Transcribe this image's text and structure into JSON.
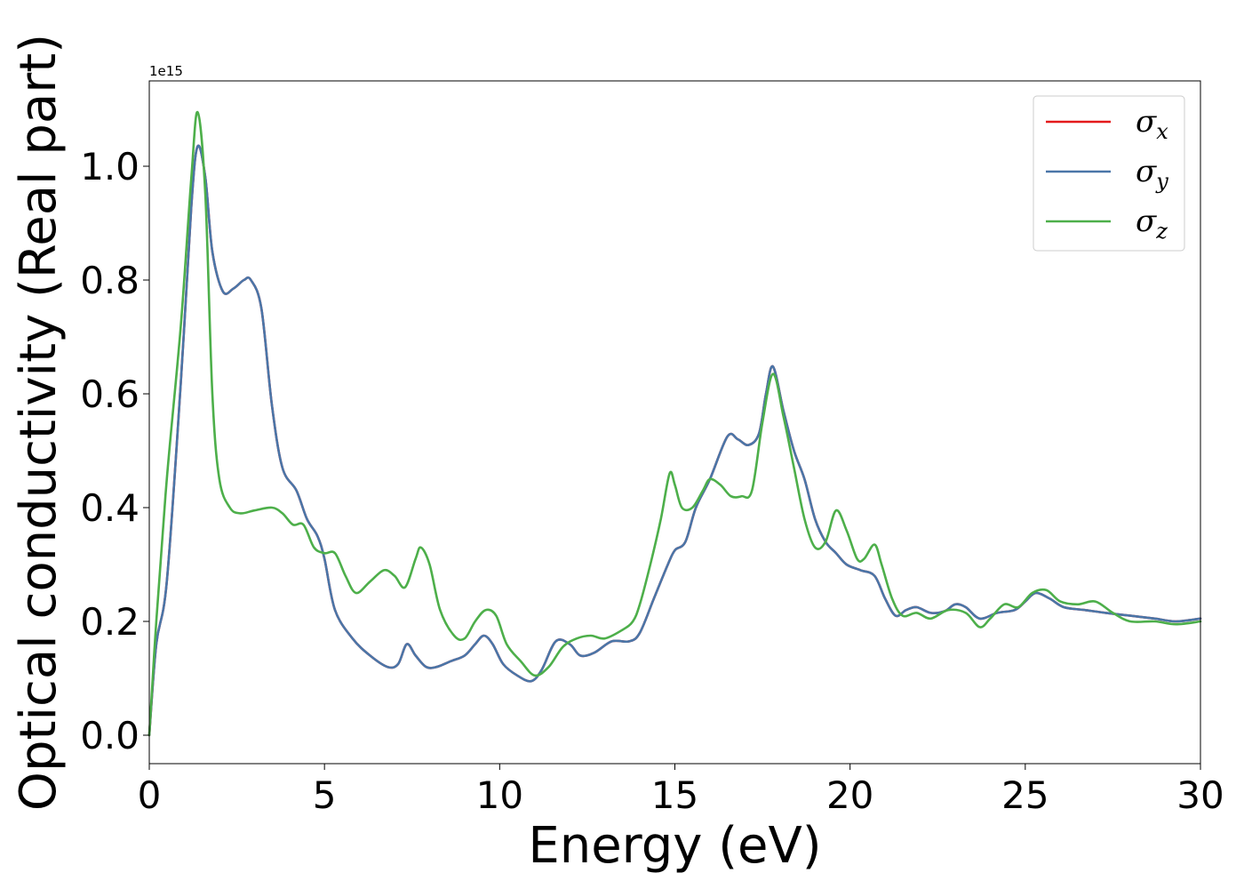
{
  "chart_data": {
    "type": "line",
    "xlabel": "Energy (eV)",
    "ylabel": "Optical conductivity (Real part)",
    "y_offset_text": "1e15",
    "y_scale": 1000000000000000.0,
    "xlim": [
      0,
      30
    ],
    "ylim": [
      -0.05,
      1.15
    ],
    "x_ticks": [
      0,
      5,
      10,
      15,
      20,
      25,
      30
    ],
    "x_tick_labels": [
      "0",
      "5",
      "10",
      "15",
      "20",
      "25",
      "30"
    ],
    "y_ticks": [
      0.0,
      0.2,
      0.4,
      0.6,
      0.8,
      1.0
    ],
    "y_tick_labels": [
      "0.0",
      "0.2",
      "0.4",
      "0.6",
      "0.8",
      "1.0"
    ],
    "grid": false,
    "legend_position": "top-right",
    "series": [
      {
        "name": "σx",
        "symbol": "σ",
        "subscript": "x",
        "color": "#e41a1c",
        "x": [
          0,
          0.2,
          0.5,
          0.9,
          1.2,
          1.38,
          1.6,
          1.8,
          2.1,
          2.4,
          2.7,
          2.9,
          3.2,
          3.5,
          3.8,
          4.2,
          4.5,
          4.8,
          5.0,
          5.3,
          5.8,
          6.3,
          6.8,
          7.1,
          7.35,
          7.6,
          7.9,
          8.2,
          8.6,
          9.0,
          9.3,
          9.55,
          9.8,
          10.1,
          10.5,
          10.9,
          11.2,
          11.6,
          12.0,
          12.3,
          12.7,
          13.2,
          13.7,
          14.0,
          14.4,
          14.8,
          15.0,
          15.3,
          15.6,
          16.0,
          16.5,
          16.8,
          17.1,
          17.4,
          17.6,
          17.8,
          18.1,
          18.4,
          18.7,
          19.0,
          19.3,
          19.6,
          19.9,
          20.3,
          20.7,
          21.0,
          21.3,
          21.6,
          21.9,
          22.3,
          22.7,
          23.0,
          23.3,
          23.7,
          24.2,
          24.7,
          25.0,
          25.3,
          25.7,
          26.1,
          26.7,
          27.3,
          28.0,
          28.7,
          29.3,
          30.0
        ],
        "y": [
          0,
          0.16,
          0.27,
          0.62,
          0.93,
          1.035,
          0.98,
          0.85,
          0.78,
          0.785,
          0.8,
          0.8,
          0.75,
          0.58,
          0.47,
          0.43,
          0.38,
          0.35,
          0.31,
          0.22,
          0.17,
          0.14,
          0.12,
          0.125,
          0.16,
          0.14,
          0.12,
          0.12,
          0.13,
          0.14,
          0.16,
          0.175,
          0.16,
          0.125,
          0.105,
          0.095,
          0.115,
          0.165,
          0.16,
          0.14,
          0.145,
          0.165,
          0.165,
          0.18,
          0.24,
          0.3,
          0.325,
          0.34,
          0.4,
          0.45,
          0.525,
          0.52,
          0.51,
          0.53,
          0.6,
          0.648,
          0.57,
          0.5,
          0.45,
          0.38,
          0.34,
          0.32,
          0.3,
          0.29,
          0.28,
          0.24,
          0.21,
          0.22,
          0.225,
          0.215,
          0.218,
          0.23,
          0.225,
          0.205,
          0.215,
          0.22,
          0.235,
          0.25,
          0.24,
          0.225,
          0.22,
          0.215,
          0.21,
          0.205,
          0.2,
          0.205
        ]
      },
      {
        "name": "σy",
        "symbol": "σ",
        "subscript": "y",
        "color": "#4a76a8",
        "x": [
          0,
          0.2,
          0.5,
          0.9,
          1.2,
          1.38,
          1.6,
          1.8,
          2.1,
          2.4,
          2.7,
          2.9,
          3.2,
          3.5,
          3.8,
          4.2,
          4.5,
          4.8,
          5.0,
          5.3,
          5.8,
          6.3,
          6.8,
          7.1,
          7.35,
          7.6,
          7.9,
          8.2,
          8.6,
          9.0,
          9.3,
          9.55,
          9.8,
          10.1,
          10.5,
          10.9,
          11.2,
          11.6,
          12.0,
          12.3,
          12.7,
          13.2,
          13.7,
          14.0,
          14.4,
          14.8,
          15.0,
          15.3,
          15.6,
          16.0,
          16.5,
          16.8,
          17.1,
          17.4,
          17.6,
          17.8,
          18.1,
          18.4,
          18.7,
          19.0,
          19.3,
          19.6,
          19.9,
          20.3,
          20.7,
          21.0,
          21.3,
          21.6,
          21.9,
          22.3,
          22.7,
          23.0,
          23.3,
          23.7,
          24.2,
          24.7,
          25.0,
          25.3,
          25.7,
          26.1,
          26.7,
          27.3,
          28.0,
          28.7,
          29.3,
          30.0
        ],
        "y": [
          0,
          0.16,
          0.27,
          0.62,
          0.93,
          1.035,
          0.98,
          0.85,
          0.78,
          0.785,
          0.8,
          0.8,
          0.75,
          0.58,
          0.47,
          0.43,
          0.38,
          0.35,
          0.31,
          0.22,
          0.17,
          0.14,
          0.12,
          0.125,
          0.16,
          0.14,
          0.12,
          0.12,
          0.13,
          0.14,
          0.16,
          0.175,
          0.16,
          0.125,
          0.105,
          0.095,
          0.115,
          0.165,
          0.16,
          0.14,
          0.145,
          0.165,
          0.165,
          0.18,
          0.24,
          0.3,
          0.325,
          0.34,
          0.4,
          0.45,
          0.525,
          0.52,
          0.51,
          0.53,
          0.6,
          0.648,
          0.57,
          0.5,
          0.45,
          0.38,
          0.34,
          0.32,
          0.3,
          0.29,
          0.28,
          0.24,
          0.21,
          0.22,
          0.225,
          0.215,
          0.218,
          0.23,
          0.225,
          0.205,
          0.215,
          0.22,
          0.235,
          0.25,
          0.24,
          0.225,
          0.22,
          0.215,
          0.21,
          0.205,
          0.2,
          0.205
        ]
      },
      {
        "name": "σz",
        "symbol": "σ",
        "subscript": "z",
        "color": "#4daf4a",
        "x": [
          0,
          0.2,
          0.5,
          0.9,
          1.2,
          1.38,
          1.6,
          1.8,
          2.0,
          2.3,
          2.6,
          3.0,
          3.5,
          3.8,
          4.1,
          4.4,
          4.7,
          5.0,
          5.3,
          5.6,
          5.9,
          6.3,
          6.7,
          7.0,
          7.3,
          7.6,
          7.75,
          8.0,
          8.3,
          8.7,
          9.0,
          9.3,
          9.6,
          9.9,
          10.2,
          10.6,
          11.0,
          11.4,
          11.8,
          12.2,
          12.6,
          13.0,
          13.5,
          13.8,
          14.0,
          14.3,
          14.6,
          14.85,
          15.0,
          15.2,
          15.5,
          15.8,
          16.0,
          16.3,
          16.6,
          16.9,
          17.2,
          17.5,
          17.8,
          18.1,
          18.4,
          18.7,
          19.0,
          19.3,
          19.6,
          19.9,
          20.2,
          20.4,
          20.7,
          20.9,
          21.2,
          21.5,
          21.9,
          22.3,
          22.8,
          23.3,
          23.7,
          24.0,
          24.4,
          24.8,
          25.2,
          25.6,
          26.0,
          26.5,
          27.0,
          27.5,
          28.0,
          28.7,
          29.3,
          30.0
        ],
        "y": [
          0,
          0.2,
          0.45,
          0.72,
          0.98,
          1.095,
          0.95,
          0.6,
          0.45,
          0.4,
          0.39,
          0.395,
          0.4,
          0.39,
          0.37,
          0.37,
          0.33,
          0.32,
          0.32,
          0.28,
          0.25,
          0.27,
          0.29,
          0.28,
          0.26,
          0.31,
          0.33,
          0.3,
          0.22,
          0.175,
          0.17,
          0.2,
          0.22,
          0.21,
          0.16,
          0.13,
          0.105,
          0.12,
          0.155,
          0.17,
          0.175,
          0.17,
          0.185,
          0.2,
          0.23,
          0.3,
          0.38,
          0.46,
          0.44,
          0.4,
          0.4,
          0.43,
          0.45,
          0.44,
          0.42,
          0.42,
          0.43,
          0.55,
          0.635,
          0.56,
          0.47,
          0.38,
          0.33,
          0.34,
          0.395,
          0.36,
          0.31,
          0.31,
          0.335,
          0.3,
          0.24,
          0.21,
          0.215,
          0.205,
          0.22,
          0.215,
          0.19,
          0.205,
          0.23,
          0.225,
          0.25,
          0.255,
          0.235,
          0.23,
          0.235,
          0.215,
          0.2,
          0.2,
          0.195,
          0.2
        ]
      }
    ]
  }
}
